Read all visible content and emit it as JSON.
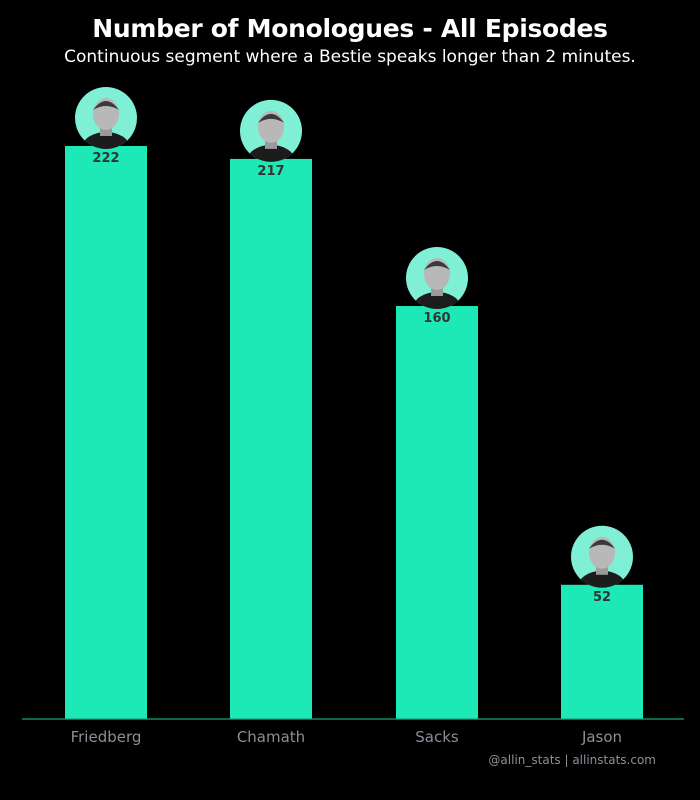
{
  "chart_data": {
    "type": "bar",
    "title": "Number of Monologues - All Episodes",
    "subtitle": "Continuous segment where a Bestie speaks longer than 2 minutes.",
    "categories": [
      "Friedberg",
      "Chamath",
      "Sacks",
      "Jason"
    ],
    "values": [
      222,
      217,
      160,
      52
    ],
    "ylim": [
      0,
      222
    ],
    "grid": false,
    "bar_color": "#1de9b6",
    "avatar_color": "#7ff0d6",
    "value_label_color": "#333333",
    "tick_label_color": "#8a8f99",
    "axis_color": "#1aa37f"
  },
  "footer": {
    "credit": "@allin_stats | allinstats.com"
  }
}
